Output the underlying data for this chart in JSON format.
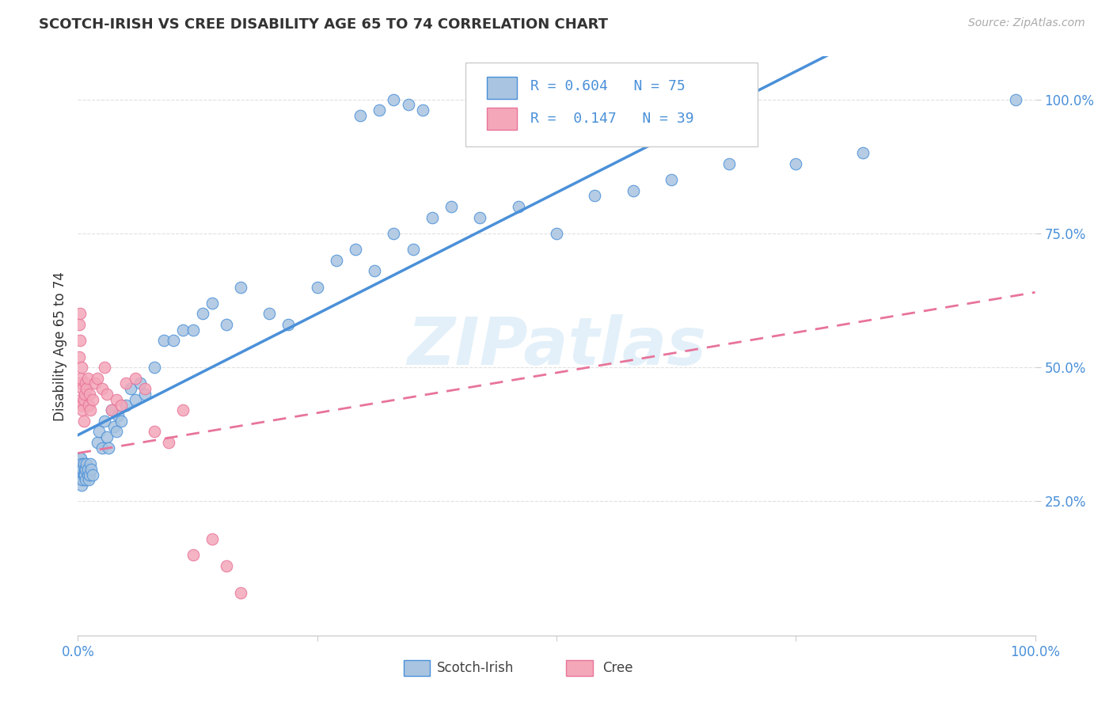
{
  "title": "SCOTCH-IRISH VS CREE DISABILITY AGE 65 TO 74 CORRELATION CHART",
  "source": "Source: ZipAtlas.com",
  "ylabel": "Disability Age 65 to 74",
  "scotch_irish_color": "#a8c4e0",
  "cree_color": "#f4a7b9",
  "scotch_irish_line_color": "#4a90d9",
  "cree_line_color": "#e8749a",
  "background_color": "#ffffff",
  "grid_color": "#dddddd",
  "watermark_color": "#cde4f5",
  "axis_label_color": "#4a90d9",
  "title_color": "#333333",
  "source_color": "#aaaaaa",
  "legend_text_color": "#4a90d9"
}
